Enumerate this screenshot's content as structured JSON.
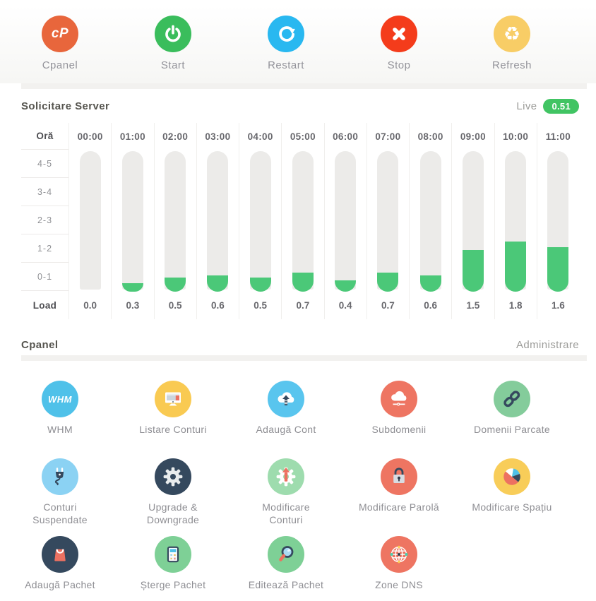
{
  "colors": {
    "bar_green": "#4bc878",
    "bar_track": "#ecebe9",
    "live_badge_green": "#41c463",
    "navy": "#35495e",
    "salmon": "#ed7161"
  },
  "top_actions": {
    "items": [
      {
        "id": "cpanel",
        "label": "Cpanel",
        "icon": "cpanel-logo-icon",
        "color": "#e8663c"
      },
      {
        "id": "start",
        "label": "Start",
        "icon": "power-icon",
        "color": "#3abd5c"
      },
      {
        "id": "restart",
        "label": "Restart",
        "icon": "restart-arrow-icon",
        "color": "#29b8f0"
      },
      {
        "id": "stop",
        "label": "Stop",
        "icon": "x-icon",
        "color": "#f43c1b"
      },
      {
        "id": "refresh",
        "label": "Refresh",
        "icon": "recycle-icon",
        "color": "#f8cd66"
      }
    ]
  },
  "server_load": {
    "title": "Solicitare Server",
    "live_label": "Live",
    "live_value": "0.51"
  },
  "chart_data": {
    "type": "bar",
    "title": "Solicitare Server",
    "corner_header": "Oră",
    "footer_header": "Load",
    "row_labels": [
      "4-5",
      "3-4",
      "2-3",
      "1-2",
      "0-1"
    ],
    "y_range": [
      0,
      5
    ],
    "grid": true,
    "columns": [
      {
        "hour": "00:00",
        "load": 0.0
      },
      {
        "hour": "01:00",
        "load": 0.3
      },
      {
        "hour": "02:00",
        "load": 0.5
      },
      {
        "hour": "03:00",
        "load": 0.6
      },
      {
        "hour": "04:00",
        "load": 0.5
      },
      {
        "hour": "05:00",
        "load": 0.7
      },
      {
        "hour": "06:00",
        "load": 0.4
      },
      {
        "hour": "07:00",
        "load": 0.7
      },
      {
        "hour": "08:00",
        "load": 0.6
      },
      {
        "hour": "09:00",
        "load": 1.5
      },
      {
        "hour": "10:00",
        "load": 1.8
      },
      {
        "hour": "11:00",
        "load": 1.6
      }
    ]
  },
  "cpanel_section": {
    "title": "Cpanel",
    "subtitle": "Administrare",
    "items": [
      {
        "id": "whm",
        "label": "WHM",
        "icon": "whm-logo-icon",
        "color": "#4fc1e9"
      },
      {
        "id": "listare-conturi",
        "label": "Listare Conturi",
        "icon": "monitor-icon",
        "color": "#f9ca52"
      },
      {
        "id": "adauga-cont",
        "label": "Adaugă Cont",
        "icon": "cloud-upload-icon",
        "color": "#59c5ee"
      },
      {
        "id": "subdomenii",
        "label": "Subdomenii",
        "icon": "cloud-network-icon",
        "color": "#ee7562"
      },
      {
        "id": "domenii-parcate",
        "label": "Domenii Parcate",
        "icon": "chain-link-icon",
        "color": "#84cc9b"
      },
      {
        "id": "conturi-suspendate",
        "label": "Conturi\nSuspendate",
        "icon": "plug-icon",
        "color": "#8bd2f3"
      },
      {
        "id": "upgrade-downgrade",
        "label": "Upgrade &\nDowngrade",
        "icon": "gear-icon",
        "color": "#35495e"
      },
      {
        "id": "modificare-conturi",
        "label": "Modificare\nConturi",
        "icon": "gear-up-arrow-icon",
        "color": "#9edcae"
      },
      {
        "id": "modificare-parola",
        "label": "Modificare Parolă",
        "icon": "lock-icon",
        "color": "#ee7562"
      },
      {
        "id": "modificare-spatiu",
        "label": "Modificare Spațiu",
        "icon": "pie-chart-icon",
        "color": "#f8cd59"
      },
      {
        "id": "adauga-pachet",
        "label": "Adaugă Pachet",
        "icon": "shopping-bag-icon",
        "color": "#35495e"
      },
      {
        "id": "sterge-pachet",
        "label": "Șterge Pachet",
        "icon": "calculator-icon",
        "color": "#7ed096"
      },
      {
        "id": "editeaza-pachet",
        "label": "Editează Pachet",
        "icon": "magnifier-icon",
        "color": "#7ed096"
      },
      {
        "id": "zone-dns",
        "label": "Zone DNS",
        "icon": "globe-icon",
        "color": "#ee7562"
      }
    ]
  }
}
